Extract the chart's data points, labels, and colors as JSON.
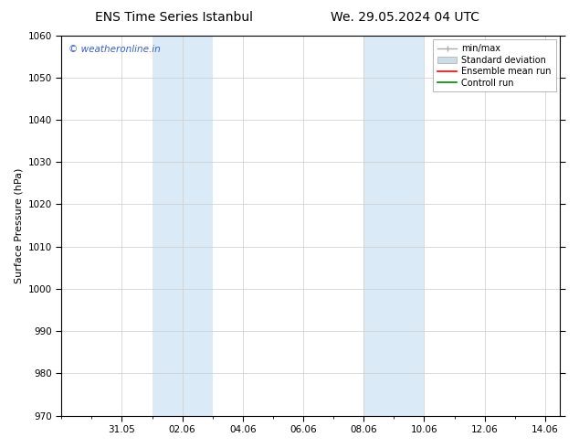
{
  "title_left": "ENS Time Series Istanbul",
  "title_right": "We. 29.05.2024 04 UTC",
  "ylabel": "Surface Pressure (hPa)",
  "ylim": [
    970,
    1060
  ],
  "yticks": [
    970,
    980,
    990,
    1000,
    1010,
    1020,
    1030,
    1040,
    1050,
    1060
  ],
  "xlim_start": "2024-05-29",
  "xlim_end": "2024-06-14.5",
  "xtick_labels": [
    "31.05",
    "02.06",
    "04.06",
    "06.06",
    "08.06",
    "10.06",
    "12.06",
    "14.06"
  ],
  "xtick_days": [
    2,
    4,
    6,
    8,
    10,
    12,
    14,
    16
  ],
  "xlim_days": [
    0,
    16.5
  ],
  "shaded_bands": [
    {
      "start": 3,
      "end": 5
    },
    {
      "start": 10,
      "end": 12
    }
  ],
  "shaded_color": "#daeaf7",
  "watermark_text": "© weatheronline.in",
  "watermark_color": "#3a5fcd",
  "bg_color": "#ffffff",
  "plot_bg_color": "#ffffff",
  "grid_color": "#cccccc",
  "title_fontsize": 10,
  "tick_fontsize": 7.5,
  "ylabel_fontsize": 8,
  "legend_fontsize": 7,
  "minmax_color": "#aaaaaa",
  "stddev_color": "#ccdde8",
  "ensemble_color": "#ff0000",
  "control_color": "#008800"
}
